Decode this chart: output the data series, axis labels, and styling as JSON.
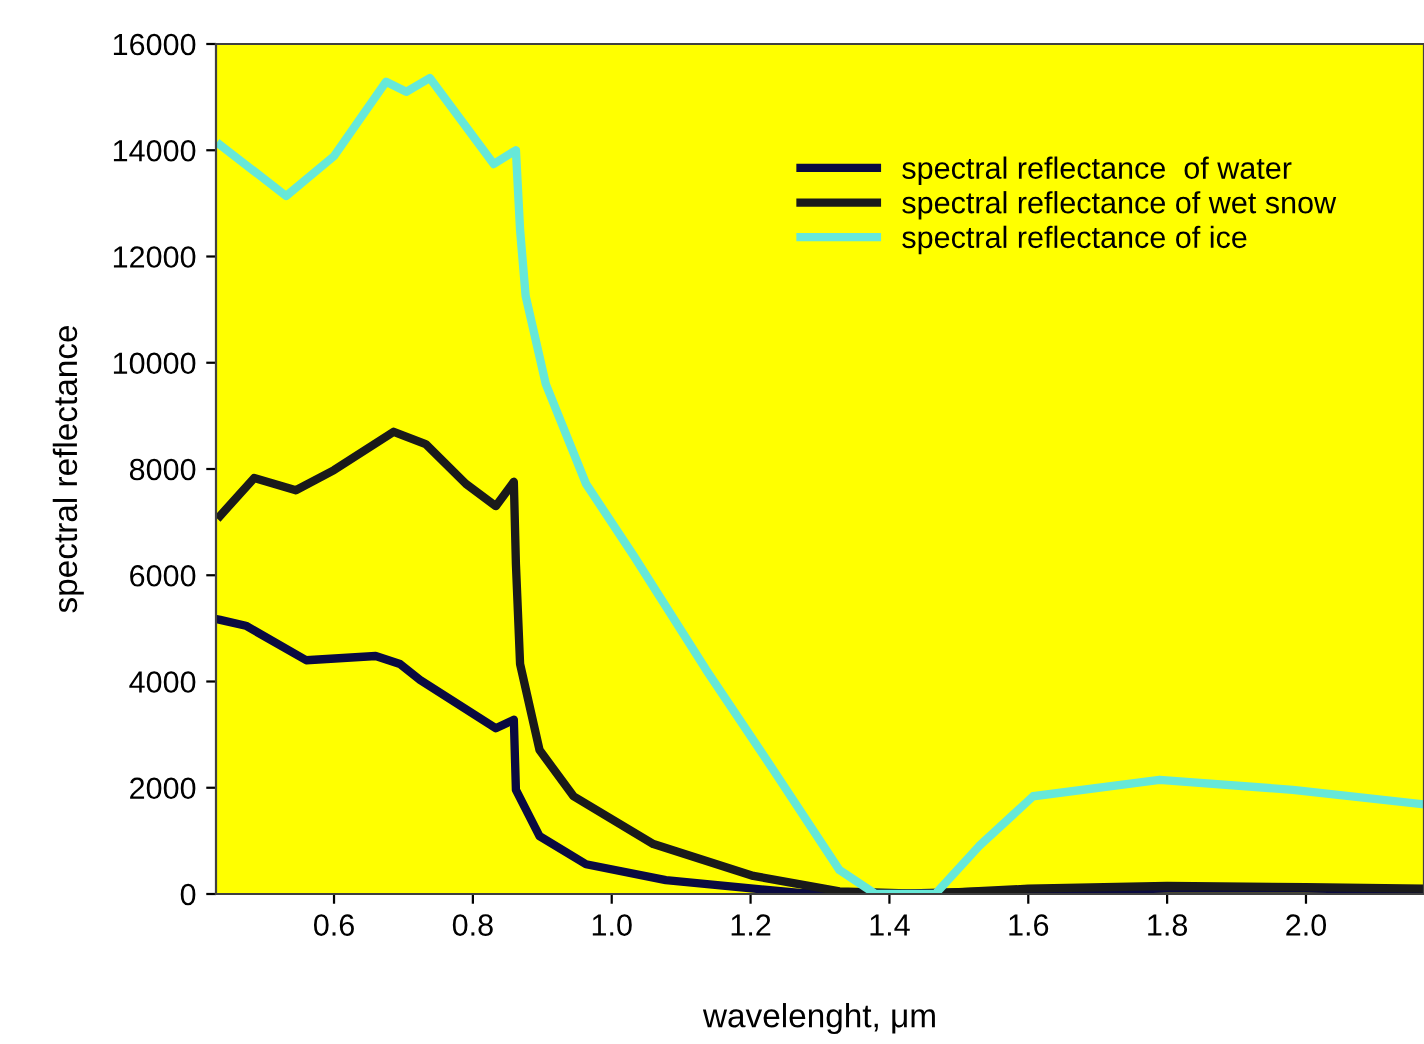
{
  "chart_data": {
    "type": "line",
    "xlabel": "wavelenght, μm",
    "ylabel": "spectral reflectance",
    "xlim": [
      0.43,
      2.17
    ],
    "ylim": [
      0,
      16000
    ],
    "xticks": [
      0.6,
      0.8,
      {
        "value": 1.0,
        "label": "1.0"
      },
      1.2,
      1.4,
      1.6,
      1.8,
      {
        "value": 2.0,
        "label": "2.0"
      }
    ],
    "yticks": [
      0,
      2000,
      4000,
      6000,
      8000,
      10000,
      12000,
      14000,
      16000
    ],
    "grid": false,
    "legend": "top right",
    "marker": "none",
    "line_style": "solid",
    "series": [
      {
        "name": "spectral reflectance  of water",
        "color": "#0a0a40",
        "x": [
          0.436,
          0.473,
          0.56,
          0.66,
          0.695,
          0.724,
          0.833,
          0.859,
          0.862,
          0.896,
          0.963,
          1.078,
          1.27,
          1.4,
          1.55,
          1.8,
          2.0,
          2.17
        ],
        "values": [
          5160,
          5050,
          4400,
          4480,
          4330,
          4030,
          3120,
          3280,
          1960,
          1090,
          560,
          260,
          20,
          0,
          50,
          100,
          100,
          80
        ]
      },
      {
        "name": "spectral reflectance of wet snow",
        "color": "#1a1a1a",
        "x": [
          0.436,
          0.485,
          0.545,
          0.6,
          0.686,
          0.732,
          0.79,
          0.833,
          0.859,
          0.862,
          0.868,
          0.896,
          0.945,
          1.06,
          1.204,
          1.328,
          1.45,
          1.6,
          1.8,
          2.0,
          2.17
        ],
        "values": [
          7120,
          7830,
          7600,
          7980,
          8700,
          8470,
          7720,
          7300,
          7760,
          6210,
          4330,
          2710,
          1840,
          940,
          340,
          50,
          0,
          100,
          150,
          130,
          100
        ]
      },
      {
        "name": "spectral reflectance of ice",
        "color": "#66e8d8",
        "x": [
          0.436,
          0.531,
          0.6,
          0.675,
          0.704,
          0.738,
          0.83,
          0.853,
          0.862,
          0.868,
          0.876,
          0.905,
          0.963,
          1.032,
          1.136,
          1.233,
          1.328,
          1.38,
          1.466,
          1.529,
          1.607,
          1.789,
          1.981,
          2.168
        ],
        "values": [
          14100,
          13140,
          13890,
          15290,
          15100,
          15360,
          13740,
          13930,
          14000,
          12500,
          11260,
          9600,
          7720,
          6360,
          4220,
          2330,
          450,
          0,
          0,
          900,
          1840,
          2150,
          1960,
          1690
        ]
      }
    ]
  }
}
